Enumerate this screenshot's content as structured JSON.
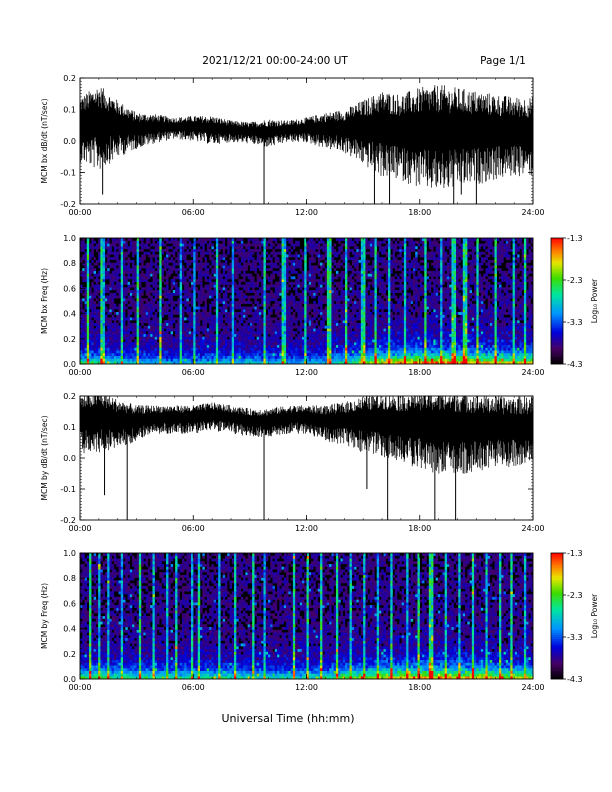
{
  "header": {
    "date_range": "2021/12/21   00:00-24:00 UT",
    "page": "Page 1/1"
  },
  "xlabel": "Universal Time (hh:mm)",
  "chart_data": [
    {
      "type": "line",
      "ylabel": "MCM bx dB/dt (nT/sec)",
      "ylim": [
        -0.2,
        0.2
      ],
      "yticks": [
        "0.2",
        "0.1",
        "0.0",
        "-0.1",
        "-0.2"
      ],
      "xticks": [
        "00:00",
        "06:00",
        "12:00",
        "18:00",
        "24:00"
      ],
      "xlim_hours": [
        0,
        24
      ],
      "series": [
        {
          "x_hours": [
            0,
            1,
            2,
            3,
            4,
            5,
            6,
            7,
            8,
            9,
            10,
            11,
            12,
            13,
            14,
            15,
            16,
            17,
            18,
            19,
            20,
            21,
            22,
            23,
            24
          ],
          "center": [
            0.05,
            0.06,
            0.05,
            0.04,
            0.045,
            0.045,
            0.045,
            0.04,
            0.035,
            0.03,
            0.03,
            0.035,
            0.04,
            0.04,
            0.04,
            0.04,
            0.04,
            0.03,
            0.03,
            0.03,
            0.03,
            0.03,
            0.03,
            0.03,
            0.03
          ],
          "amplitude": [
            0.09,
            0.12,
            0.08,
            0.05,
            0.04,
            0.03,
            0.035,
            0.04,
            0.03,
            0.03,
            0.04,
            0.03,
            0.035,
            0.05,
            0.06,
            0.09,
            0.12,
            0.12,
            0.14,
            0.15,
            0.14,
            0.13,
            0.12,
            0.11,
            0.11
          ]
        }
      ],
      "spikes": [
        {
          "x": 9.75,
          "y": -0.2
        },
        {
          "x": 1.2,
          "y": -0.17
        },
        {
          "x": 15.6,
          "y": -0.2
        },
        {
          "x": 16.4,
          "y": -0.2
        },
        {
          "x": 19.8,
          "y": -0.2
        },
        {
          "x": 20.2,
          "y": -0.17
        },
        {
          "x": 21.0,
          "y": -0.2
        }
      ]
    },
    {
      "type": "heatmap",
      "ylabel": "MCM bx Freq (Hz)",
      "ylim": [
        0.0,
        1.0
      ],
      "yticks": [
        "1.0",
        "0.8",
        "0.6",
        "0.4",
        "0.2",
        "0.0"
      ],
      "xticks": [
        "00:00",
        "06:00",
        "12:00",
        "18:00",
        "24:00"
      ],
      "colorbar": {
        "label": "Log₁₀ Power",
        "ticks": [
          "-1.3",
          "-2.3",
          "-3.3",
          "-4.3"
        ],
        "range": [
          -4.3,
          -1.3
        ]
      },
      "activity_hours": [
        0,
        1,
        2,
        3,
        4,
        5,
        6,
        7,
        8,
        9,
        10,
        11,
        12,
        13,
        14,
        15,
        16,
        17,
        18,
        19,
        20,
        21,
        22,
        23,
        24
      ],
      "activity": [
        0.45,
        0.5,
        0.4,
        0.35,
        0.3,
        0.3,
        0.3,
        0.35,
        0.35,
        0.35,
        0.35,
        0.3,
        0.3,
        0.35,
        0.45,
        0.55,
        0.7,
        0.75,
        0.8,
        0.8,
        0.75,
        0.7,
        0.7,
        0.65,
        0.65
      ],
      "streak_hours": [
        0.4,
        1.2,
        2.2,
        3.1,
        4.3,
        5.3,
        6.1,
        7.3,
        8.1,
        9.75,
        10.8,
        11.9,
        13.2,
        14.1,
        15.0,
        15.7,
        16.4,
        17.2,
        18.3,
        19.1,
        19.8,
        20.4,
        21.1,
        22.0,
        23.0,
        23.6
      ]
    },
    {
      "type": "line",
      "ylabel": "MCM by dB/dt (nT/sec)",
      "ylim": [
        -0.2,
        0.2
      ],
      "yticks": [
        "0.2",
        "0.1",
        "0.0",
        "-0.1",
        "-0.2"
      ],
      "xticks": [
        "00:00",
        "06:00",
        "12:00",
        "18:00",
        "24:00"
      ],
      "xlim_hours": [
        0,
        24
      ],
      "series": [
        {
          "x_hours": [
            0,
            1,
            2,
            3,
            4,
            5,
            6,
            7,
            8,
            9,
            10,
            11,
            12,
            13,
            14,
            15,
            16,
            17,
            18,
            19,
            20,
            21,
            22,
            23,
            24
          ],
          "center": [
            0.12,
            0.13,
            0.12,
            0.12,
            0.13,
            0.13,
            0.13,
            0.14,
            0.13,
            0.12,
            0.12,
            0.13,
            0.13,
            0.12,
            0.12,
            0.12,
            0.12,
            0.11,
            0.11,
            0.1,
            0.1,
            0.1,
            0.1,
            0.1,
            0.1
          ],
          "amplitude": [
            0.08,
            0.09,
            0.07,
            0.05,
            0.04,
            0.04,
            0.04,
            0.04,
            0.04,
            0.04,
            0.04,
            0.04,
            0.04,
            0.05,
            0.06,
            0.08,
            0.09,
            0.1,
            0.11,
            0.12,
            0.12,
            0.11,
            0.1,
            0.1,
            0.1
          ]
        }
      ],
      "spikes": [
        {
          "x": 1.3,
          "y": -0.12
        },
        {
          "x": 2.5,
          "y": -0.2
        },
        {
          "x": 9.75,
          "y": -0.2
        },
        {
          "x": 16.3,
          "y": -0.2
        },
        {
          "x": 18.8,
          "y": -0.2
        },
        {
          "x": 19.9,
          "y": -0.2
        },
        {
          "x": 15.2,
          "y": -0.1
        }
      ]
    },
    {
      "type": "heatmap",
      "ylabel": "MCM by Freq (Hz)",
      "ylim": [
        0.0,
        1.0
      ],
      "yticks": [
        "1.0",
        "0.8",
        "0.6",
        "0.4",
        "0.2",
        "0.0"
      ],
      "xticks": [
        "00:00",
        "06:00",
        "12:00",
        "18:00",
        "24:00"
      ],
      "colorbar": {
        "label": "Log₁₀ Power",
        "ticks": [
          "-1.3",
          "-2.3",
          "-3.3",
          "-4.3"
        ],
        "range": [
          -4.3,
          -1.3
        ]
      },
      "activity_hours": [
        0,
        1,
        2,
        3,
        4,
        5,
        6,
        7,
        8,
        9,
        10,
        11,
        12,
        13,
        14,
        15,
        16,
        17,
        18,
        19,
        20,
        21,
        22,
        23,
        24
      ],
      "activity": [
        0.5,
        0.55,
        0.45,
        0.45,
        0.45,
        0.45,
        0.45,
        0.45,
        0.45,
        0.4,
        0.4,
        0.4,
        0.4,
        0.45,
        0.55,
        0.6,
        0.7,
        0.75,
        0.8,
        0.8,
        0.75,
        0.7,
        0.7,
        0.65,
        0.65
      ],
      "streak_hours": [
        0.5,
        1.0,
        1.5,
        2.2,
        3.2,
        3.9,
        4.6,
        5.1,
        5.9,
        6.3,
        7.4,
        8.2,
        9.2,
        9.75,
        11.3,
        12.1,
        12.8,
        13.6,
        14.3,
        15.1,
        15.8,
        16.5,
        17.3,
        17.9,
        18.6,
        19.4,
        20.1,
        20.8,
        21.5,
        22.3,
        22.9,
        23.6
      ]
    }
  ]
}
